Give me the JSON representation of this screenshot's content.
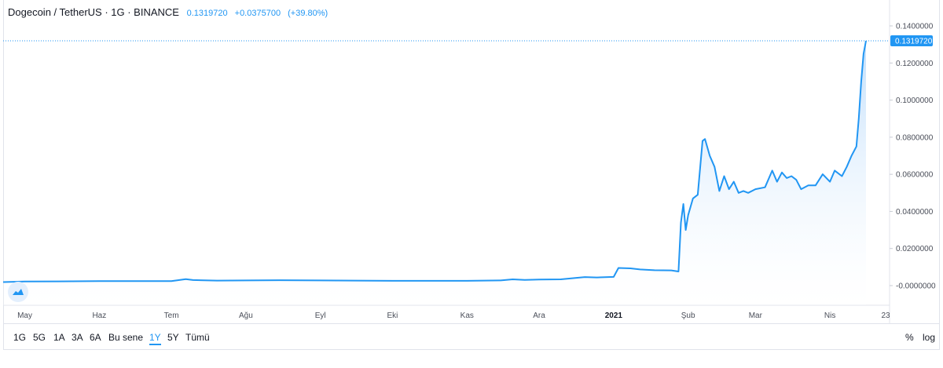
{
  "header": {
    "symbol": "Dogecoin / TetherUS · 1G · BINANCE",
    "last": "0.1319720",
    "change": "+0.0375700",
    "change_pct": "(+39.80%)"
  },
  "price_tag": "0.1319720",
  "colors": {
    "line": "#2196f3",
    "area_top": "#bcdcfb",
    "area_bottom": "#ffffff"
  },
  "logo_icon": "tradingview-cloud-icon",
  "toolbar": {
    "ranges": [
      "1G",
      "5G",
      "1A",
      "3A",
      "6A",
      "Bu sene",
      "1Y",
      "5Y",
      "Tümü"
    ],
    "active_range": "1Y",
    "percent_label": "%",
    "log_label": "log"
  },
  "chart_data": {
    "type": "area",
    "title": "Dogecoin / TetherUS · 1G · BINANCE",
    "xlabel": "",
    "ylabel": "",
    "x_tick_labels": [
      "May",
      "Haz",
      "Tem",
      "Ağu",
      "Eyl",
      "Eki",
      "Kas",
      "Ara",
      "2021",
      "Şub",
      "Mar",
      "Nis",
      "23"
    ],
    "y_tick_labels": [
      "0.1400000",
      "0.1200000",
      "0.1000000",
      "0.0800000",
      "0.0600000",
      "0.0400000",
      "0.0200000",
      "-0.0000000"
    ],
    "ylim": [
      -0.004,
      0.148
    ],
    "grid": false,
    "series": [
      {
        "x": [
          "2020-04-22",
          "2020-05-01",
          "2020-05-15",
          "2020-06-01",
          "2020-06-15",
          "2020-07-01",
          "2020-07-07",
          "2020-07-10",
          "2020-07-20",
          "2020-08-01",
          "2020-08-15",
          "2020-09-01",
          "2020-09-15",
          "2020-10-01",
          "2020-10-15",
          "2020-11-01",
          "2020-11-15",
          "2020-11-20",
          "2020-11-25",
          "2020-12-01",
          "2020-12-10",
          "2020-12-20",
          "2020-12-25",
          "2021-01-01",
          "2021-01-03",
          "2021-01-08",
          "2021-01-12",
          "2021-01-18",
          "2021-01-25",
          "2021-01-28",
          "2021-01-29",
          "2021-01-30",
          "2021-01-31",
          "2021-02-01",
          "2021-02-03",
          "2021-02-05",
          "2021-02-07",
          "2021-02-08",
          "2021-02-10",
          "2021-02-12",
          "2021-02-14",
          "2021-02-16",
          "2021-02-18",
          "2021-02-20",
          "2021-02-22",
          "2021-02-24",
          "2021-02-26",
          "2021-03-01",
          "2021-03-05",
          "2021-03-08",
          "2021-03-10",
          "2021-03-12",
          "2021-03-14",
          "2021-03-16",
          "2021-03-18",
          "2021-03-20",
          "2021-03-23",
          "2021-03-26",
          "2021-03-29",
          "2021-04-01",
          "2021-04-03",
          "2021-04-06",
          "2021-04-08",
          "2021-04-10",
          "2021-04-12",
          "2021-04-13",
          "2021-04-14",
          "2021-04-15",
          "2021-04-16"
        ],
        "y": [
          0.0019,
          0.0022,
          0.0023,
          0.0024,
          0.0024,
          0.0024,
          0.0035,
          0.003,
          0.0027,
          0.0028,
          0.0029,
          0.0028,
          0.0027,
          0.0026,
          0.0026,
          0.0026,
          0.0028,
          0.0034,
          0.0031,
          0.0033,
          0.0034,
          0.0046,
          0.0044,
          0.0047,
          0.0095,
          0.0093,
          0.0087,
          0.0083,
          0.0082,
          0.0076,
          0.034,
          0.044,
          0.03,
          0.038,
          0.047,
          0.049,
          0.078,
          0.079,
          0.07,
          0.064,
          0.051,
          0.059,
          0.052,
          0.056,
          0.05,
          0.051,
          0.05,
          0.052,
          0.053,
          0.062,
          0.056,
          0.061,
          0.058,
          0.059,
          0.057,
          0.052,
          0.054,
          0.054,
          0.06,
          0.056,
          0.062,
          0.059,
          0.064,
          0.07,
          0.075,
          0.09,
          0.11,
          0.125,
          0.131972
        ]
      }
    ]
  }
}
